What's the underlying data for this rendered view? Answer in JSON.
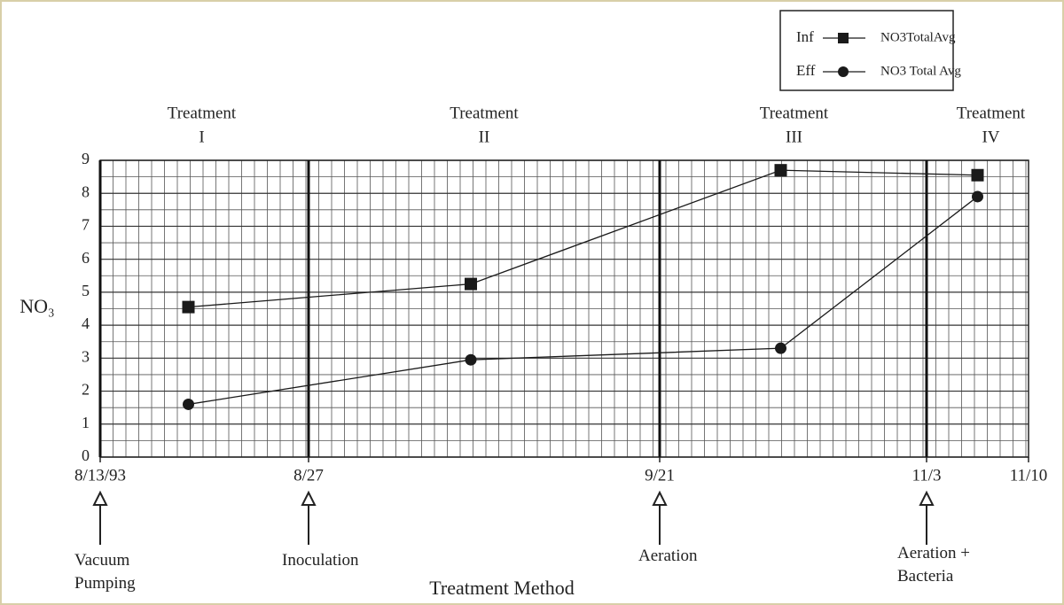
{
  "chart_data": {
    "type": "line",
    "xlabel": "Treatment Method",
    "ylabel": "NO₃",
    "category_prefix": "Treatment",
    "categories": [
      "I",
      "II",
      "III",
      "IV"
    ],
    "x_boundaries": [
      "8/13/93",
      "8/27",
      "9/21",
      "11/3",
      "11/10"
    ],
    "annotations": [
      "Vacuum Pumping",
      "Inoculation",
      "Aeration",
      "Aeration + Bacteria"
    ],
    "series": [
      {
        "label": "Inf",
        "name": "NO3TotalAvg",
        "marker": "square",
        "color": "#1a1a1a",
        "values": [
          4.55,
          5.25,
          8.7,
          8.55
        ]
      },
      {
        "label": "Eff",
        "name": "NO3 Total Avg",
        "marker": "circle",
        "color": "#1a1a1a",
        "values": [
          1.6,
          2.95,
          3.3,
          7.9
        ]
      }
    ],
    "ylim": [
      0,
      9
    ],
    "yticks": [
      0,
      1,
      2,
      3,
      4,
      5,
      6,
      7,
      8,
      9
    ],
    "grid": true,
    "legend": "upper right"
  }
}
